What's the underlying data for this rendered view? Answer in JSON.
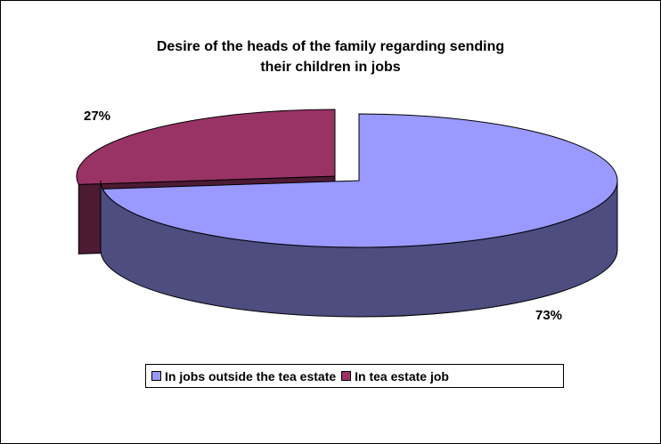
{
  "chart_data": {
    "type": "pie",
    "title_lines": [
      "Desire of the heads of the family regarding sending",
      "their children in jobs"
    ],
    "slices": [
      {
        "name": "In jobs outside the tea estate",
        "value": 73,
        "label": "73%",
        "color": "#9999FF",
        "side_color": "#4D4D80"
      },
      {
        "name": "In tea estate job",
        "value": 27,
        "label": "27%",
        "color": "#993366",
        "side_color": "#4D1A33"
      }
    ],
    "legend_position": "bottom",
    "style": "3d-exploded"
  }
}
